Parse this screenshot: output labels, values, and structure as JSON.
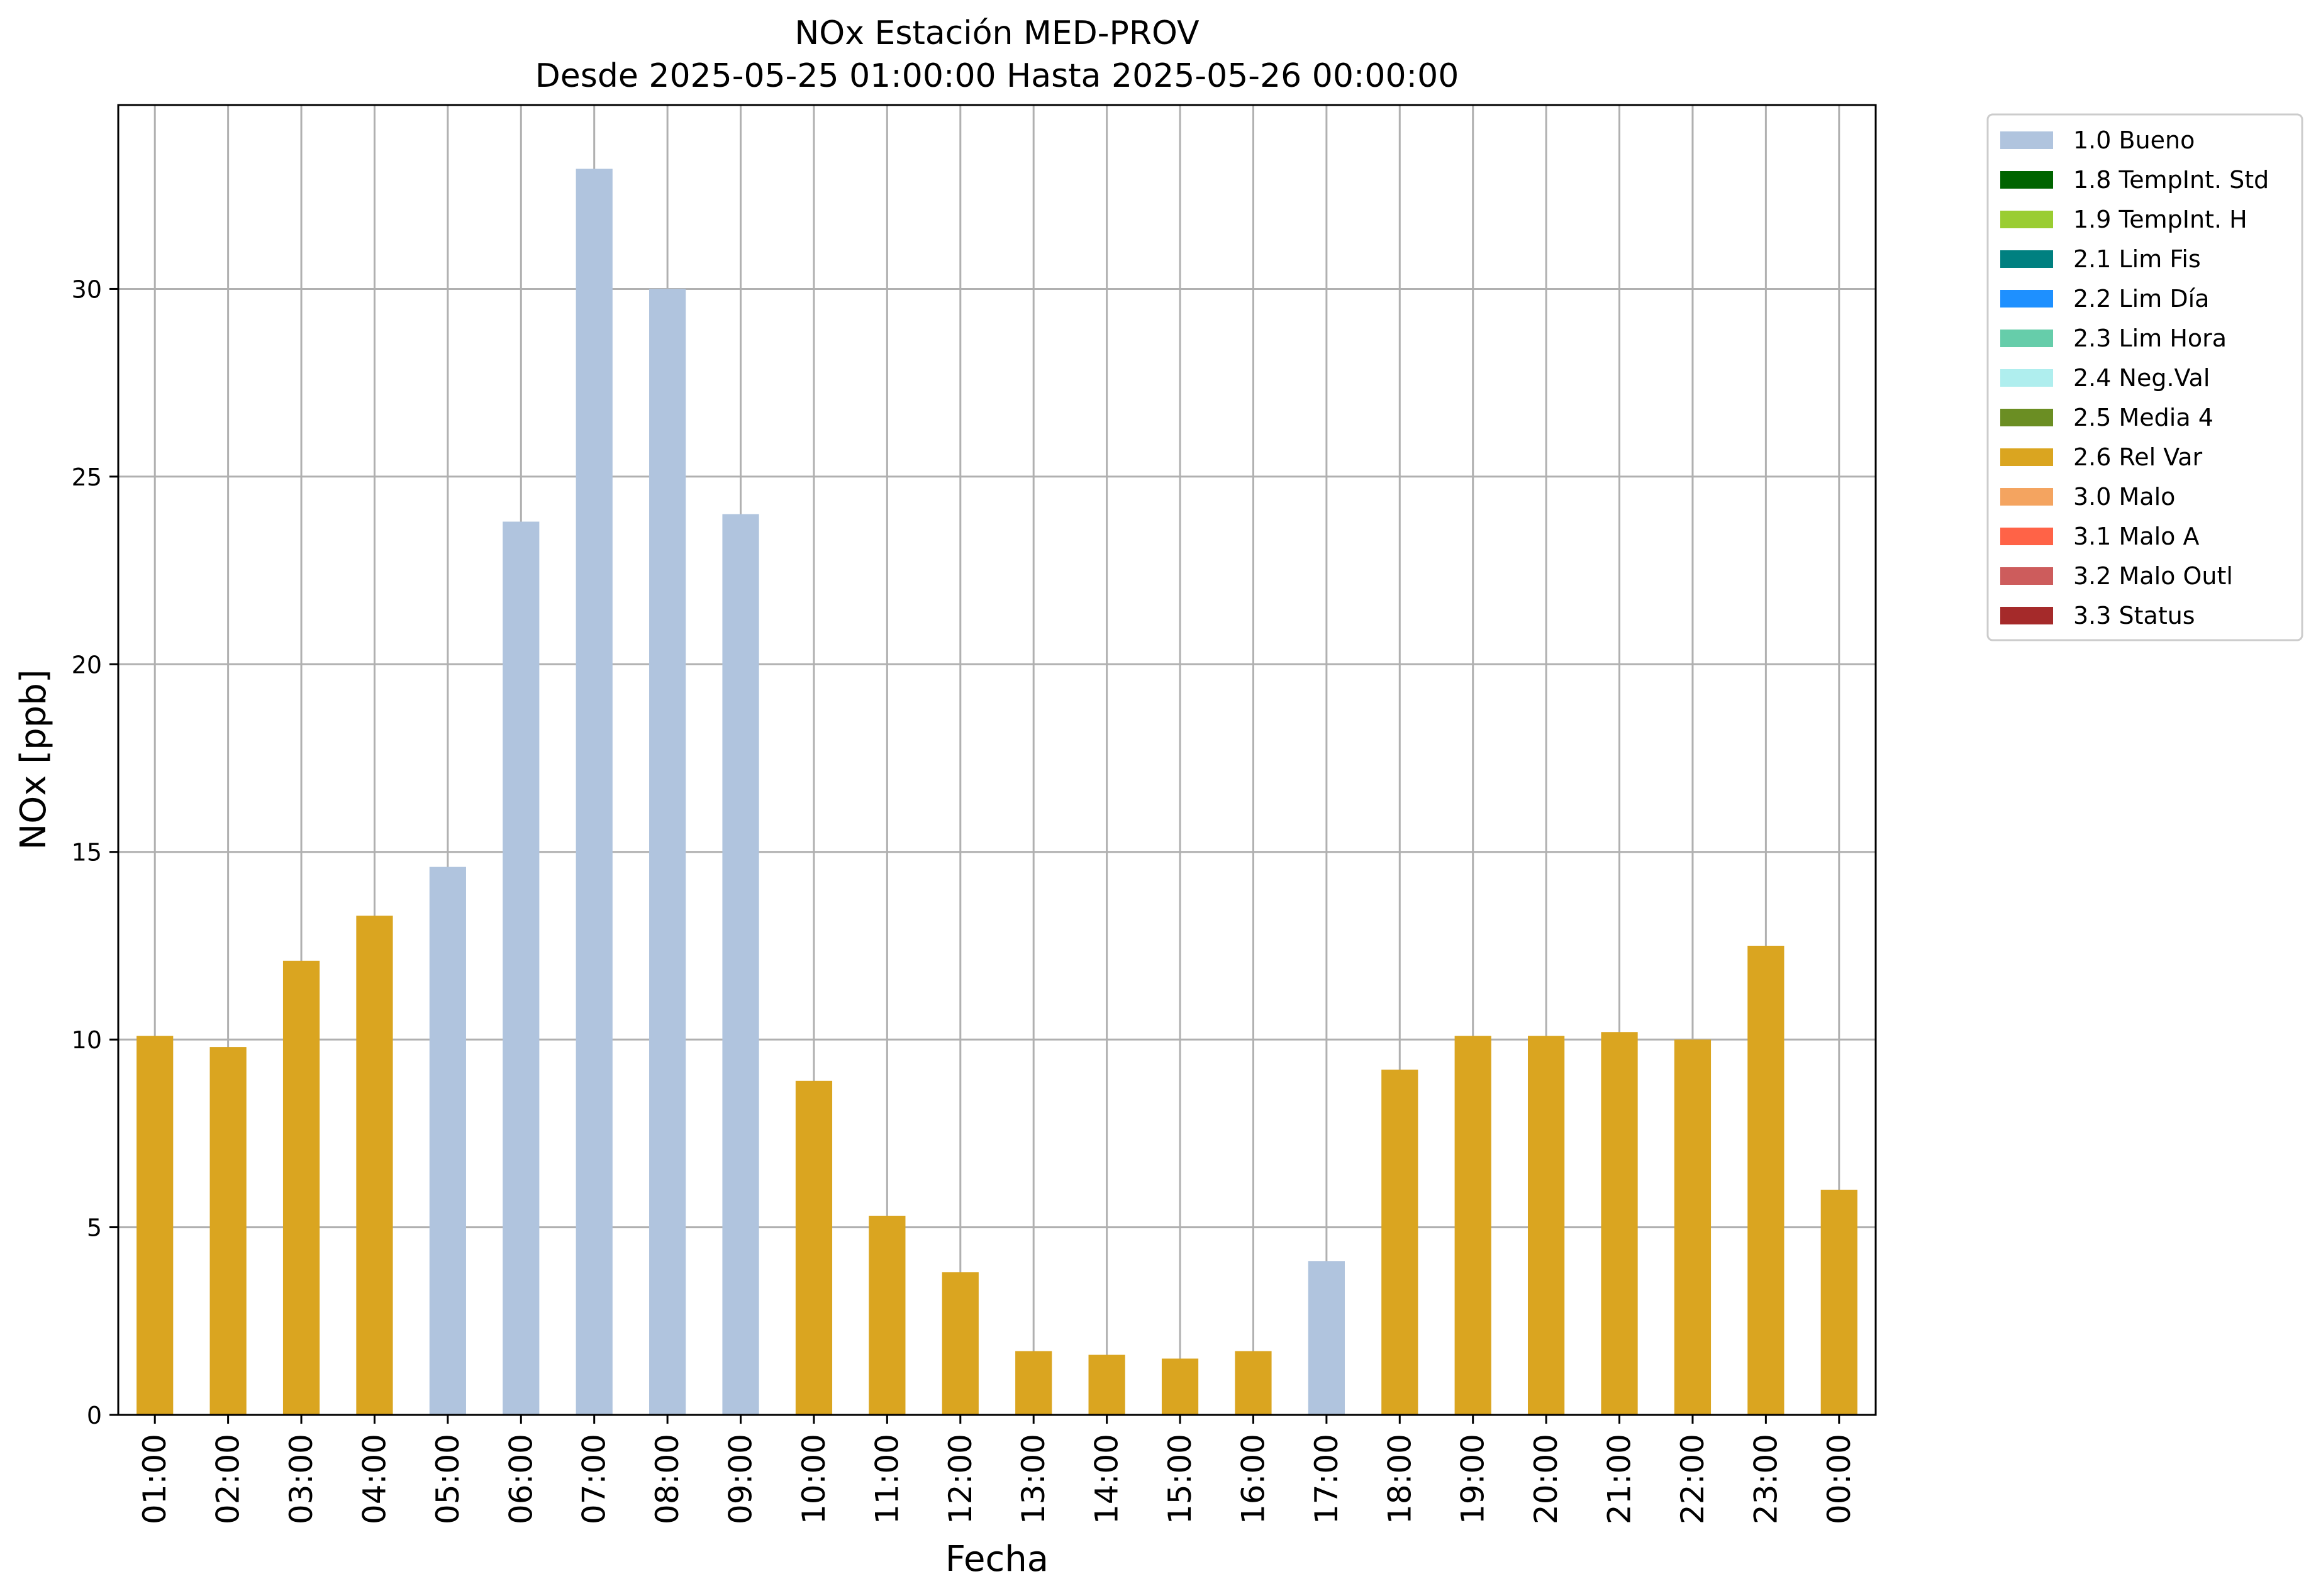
{
  "chart_data": {
    "type": "bar",
    "title_line1": "NOx Estación MED-PROV",
    "title_line2": "Desde 2025-05-25 01:00:00 Hasta 2025-05-26 00:00:00",
    "xlabel": "Fecha",
    "ylabel": "NOx [ppb]",
    "ylim": [
      0,
      34.9
    ],
    "yticks": [
      0,
      5,
      10,
      15,
      20,
      25,
      30
    ],
    "grid": true,
    "legend_position": "outside-right-top",
    "categories": [
      "01:00",
      "02:00",
      "03:00",
      "04:00",
      "05:00",
      "06:00",
      "07:00",
      "08:00",
      "09:00",
      "10:00",
      "11:00",
      "12:00",
      "13:00",
      "14:00",
      "15:00",
      "16:00",
      "17:00",
      "18:00",
      "19:00",
      "20:00",
      "21:00",
      "22:00",
      "23:00",
      "00:00"
    ],
    "values": [
      10.1,
      9.8,
      12.1,
      13.3,
      14.6,
      23.8,
      33.2,
      30.0,
      24.0,
      8.9,
      5.3,
      3.8,
      1.7,
      1.6,
      1.5,
      1.7,
      4.1,
      9.2,
      10.1,
      10.1,
      10.2,
      10.0,
      12.5,
      6.0
    ],
    "flags": [
      "2.6 Rel Var",
      "2.6 Rel Var",
      "2.6 Rel Var",
      "2.6 Rel Var",
      "1.0 Bueno",
      "1.0 Bueno",
      "1.0 Bueno",
      "1.0 Bueno",
      "1.0 Bueno",
      "2.6 Rel Var",
      "2.6 Rel Var",
      "2.6 Rel Var",
      "2.6 Rel Var",
      "2.6 Rel Var",
      "2.6 Rel Var",
      "2.6 Rel Var",
      "1.0 Bueno",
      "2.6 Rel Var",
      "2.6 Rel Var",
      "2.6 Rel Var",
      "2.6 Rel Var",
      "2.6 Rel Var",
      "2.6 Rel Var",
      "2.6 Rel Var"
    ],
    "legend": [
      {
        "label": "1.0 Bueno",
        "color": "#b0c4de"
      },
      {
        "label": "1.8 TempInt. Std",
        "color": "#006400"
      },
      {
        "label": "1.9 TempInt. H",
        "color": "#9acd32"
      },
      {
        "label": "2.1 Lim Fis",
        "color": "#008080"
      },
      {
        "label": "2.2 Lim Día",
        "color": "#1e90ff"
      },
      {
        "label": "2.3 Lim Hora",
        "color": "#66cdaa"
      },
      {
        "label": "2.4 Neg.Val",
        "color": "#afeeee"
      },
      {
        "label": "2.5 Media 4",
        "color": "#6b8e23"
      },
      {
        "label": "2.6 Rel Var",
        "color": "#daa520"
      },
      {
        "label": "3.0 Malo",
        "color": "#f4a460"
      },
      {
        "label": "3.1 Malo A",
        "color": "#ff6347"
      },
      {
        "label": "3.2 Malo Outl",
        "color": "#cd5c5c"
      },
      {
        "label": "3.3 Status",
        "color": "#a52a2a"
      }
    ]
  }
}
